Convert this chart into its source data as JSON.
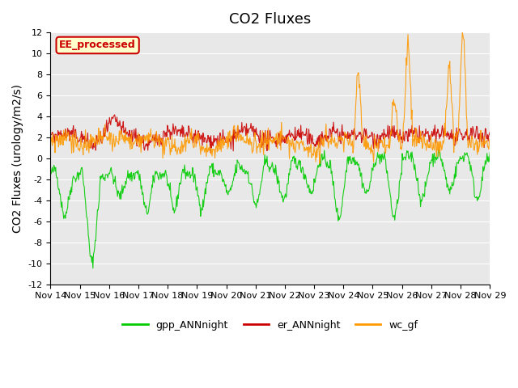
{
  "title": "CO2 Fluxes",
  "ylabel": "CO2 Fluxes (urology/m2/s)",
  "ylim": [
    -12,
    12
  ],
  "yticks": [
    -12,
    -10,
    -8,
    -6,
    -4,
    -2,
    0,
    2,
    4,
    6,
    8,
    10,
    12
  ],
  "xtick_labels": [
    "Nov 14",
    "Nov 15",
    "Nov 16",
    "Nov 17",
    "Nov 18",
    "Nov 19",
    "Nov 20",
    "Nov 21",
    "Nov 22",
    "Nov 23",
    "Nov 24",
    "Nov 25",
    "Nov 26",
    "Nov 27",
    "Nov 28",
    "Nov 29"
  ],
  "colors": {
    "gpp": "#00cc00",
    "er": "#cc0000",
    "wc": "#ff9900"
  },
  "legend_labels": [
    "gpp_ANNnight",
    "er_ANNnight",
    "wc_gf"
  ],
  "dataset_label": "EE_processed",
  "dataset_label_color": "#cc0000",
  "dataset_label_bg": "#ffffcc",
  "background_color": "#e8e8e8",
  "title_fontsize": 13,
  "axis_label_fontsize": 10,
  "tick_fontsize": 8
}
